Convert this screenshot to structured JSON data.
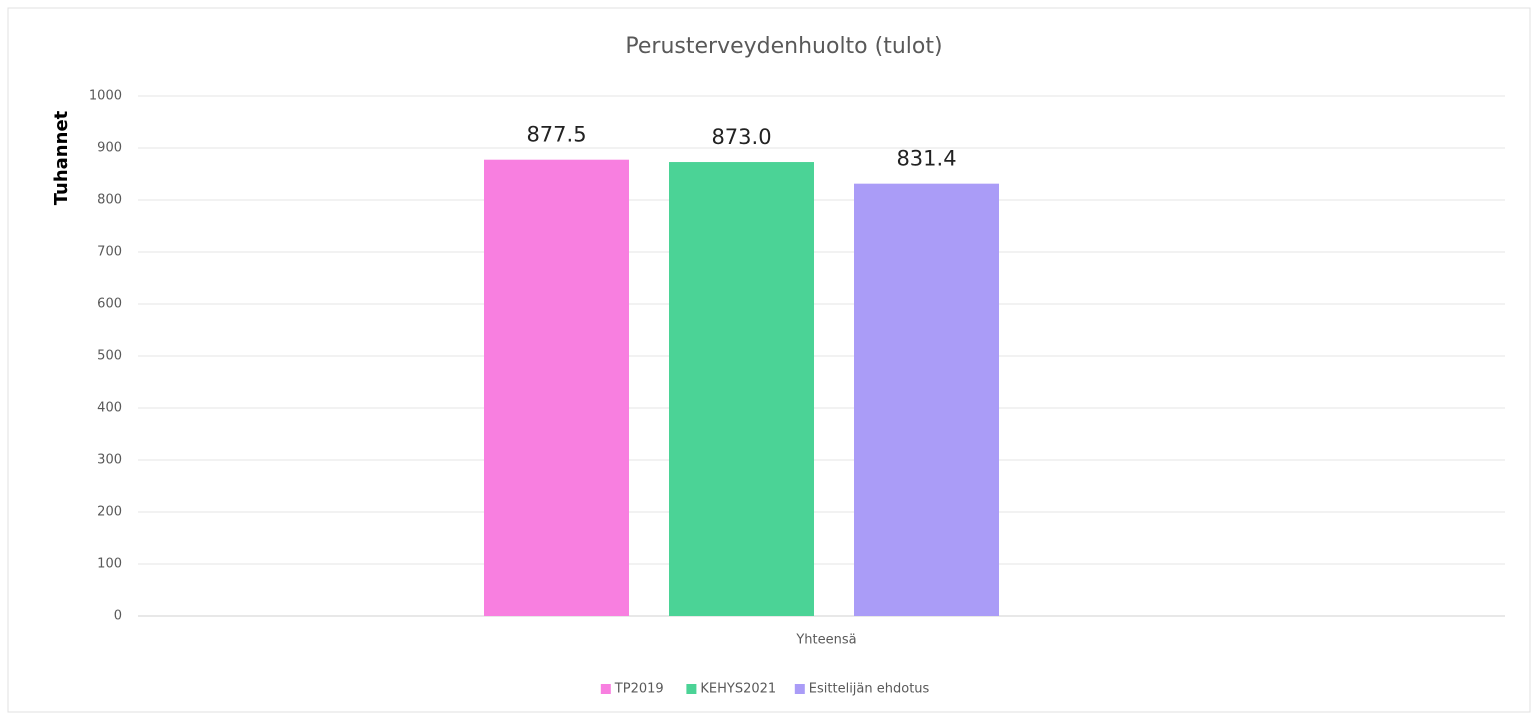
{
  "chart_data": {
    "type": "bar",
    "title": "Perusterveydenhuolto (tulot)",
    "y_label": "Tuhannet",
    "categories": [
      "Yhteensä"
    ],
    "series": [
      {
        "name": "TP2019",
        "color": "#f87fe0",
        "values": [
          877.5
        ],
        "value_labels": [
          "877.5"
        ]
      },
      {
        "name": "KEHYS2021",
        "color": "#4bd396",
        "values": [
          873
        ],
        "value_labels": [
          "873.0"
        ]
      },
      {
        "name": "Esittelijän ehdotus",
        "color": "#aa9cf7",
        "values": [
          831.4
        ],
        "value_labels": [
          "831.4"
        ]
      }
    ],
    "ylim": [
      0,
      1000
    ],
    "yticks": [
      0,
      100,
      200,
      300,
      400,
      500,
      600,
      700,
      800,
      900,
      1000
    ],
    "grid": true,
    "legend": "bottom"
  }
}
